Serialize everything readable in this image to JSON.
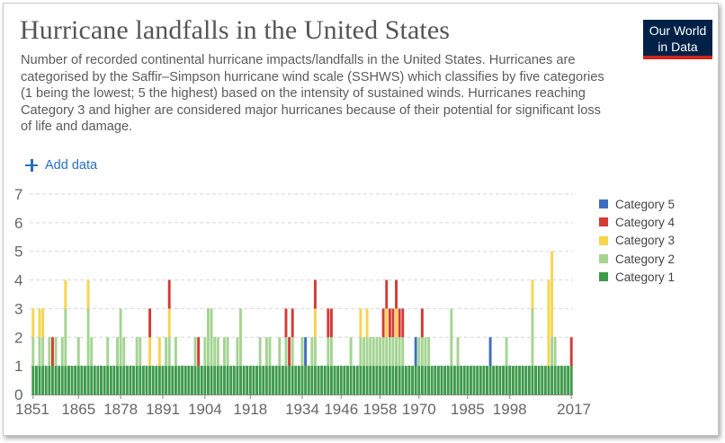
{
  "header": {
    "title": "Hurricane landfalls in the United States",
    "subtitle": "Number of recorded continental hurricane impacts/landfalls in the United States. Hurricanes are categorised by the Saffir–Simpson hurricane wind scale (SSHWS) which classifies by five categories (1 being the lowest; 5 the highest) based on the intensity of sustained winds. Hurricanes reaching Category 3 and higher are considered major hurricanes because of their potential for significant loss of life and damage."
  },
  "logo": {
    "line1": "Our World",
    "line2": "in Data"
  },
  "add_data_label": "Add data",
  "colors": {
    "cat1": "#3d9a4b",
    "cat2": "#a4d492",
    "cat3": "#f7d44d",
    "cat4": "#d43a36",
    "cat5": "#3b6fbf",
    "grid": "#d6d6d6",
    "axis": "#888888"
  },
  "chart_data": {
    "type": "bar",
    "stacked": true,
    "x_start": 1851,
    "x_end": 2017,
    "xticks": [
      "1851",
      "1865",
      "1878",
      "1891",
      "1904",
      "1918",
      "1934",
      "1946",
      "1958",
      "1970",
      "1985",
      "1998",
      "2017"
    ],
    "yticks": [
      "0",
      "1",
      "2",
      "3",
      "4",
      "5",
      "6",
      "7"
    ],
    "ylim": [
      0,
      7
    ],
    "grid": "horizontal dashed",
    "legend_position": "right",
    "series": [
      {
        "name": "Category 5",
        "color": "#3b6fbf",
        "values": [
          0,
          0,
          0,
          0,
          0,
          0,
          0,
          0,
          0,
          0,
          0,
          0,
          0,
          0,
          0,
          0,
          0,
          0,
          0,
          0,
          0,
          0,
          0,
          0,
          0,
          0,
          0,
          0,
          0,
          0,
          0,
          0,
          0,
          0,
          0,
          0,
          0,
          0,
          0,
          0,
          0,
          0,
          0,
          0,
          0,
          0,
          0,
          0,
          0,
          0,
          0,
          0,
          0,
          0,
          0,
          0,
          0,
          0,
          0,
          0,
          0,
          0,
          0,
          0,
          0,
          0,
          0,
          0,
          0,
          0,
          0,
          0,
          0,
          0,
          0,
          0,
          0,
          0,
          0,
          0,
          0,
          0,
          0,
          0,
          1,
          0,
          0,
          0,
          0,
          0,
          0,
          0,
          0,
          0,
          0,
          0,
          0,
          0,
          0,
          0,
          0,
          0,
          0,
          0,
          0,
          0,
          0,
          0,
          0,
          0,
          0,
          0,
          0,
          0,
          0,
          0,
          0,
          0,
          1,
          0,
          0,
          0,
          0,
          0,
          0,
          0,
          0,
          0,
          0,
          0,
          0,
          0,
          0,
          0,
          0,
          0,
          0,
          0,
          0,
          0,
          0,
          1,
          0,
          0,
          0,
          0,
          0,
          0,
          0,
          0,
          0,
          0,
          0,
          0,
          0,
          0,
          0,
          0,
          0,
          0,
          0,
          0,
          0,
          0,
          0,
          0,
          0
        ]
      },
      {
        "name": "Category 4",
        "color": "#d43a36",
        "values": [
          0,
          0,
          0,
          0,
          0,
          0,
          1,
          0,
          0,
          0,
          0,
          0,
          0,
          0,
          0,
          0,
          0,
          0,
          0,
          0,
          0,
          0,
          0,
          0,
          0,
          0,
          0,
          0,
          0,
          0,
          0,
          0,
          0,
          0,
          0,
          0,
          1,
          0,
          0,
          0,
          0,
          0,
          1,
          0,
          0,
          0,
          0,
          0,
          0,
          0,
          0,
          1,
          0,
          0,
          0,
          0,
          0,
          0,
          0,
          0,
          0,
          0,
          0,
          0,
          0,
          0,
          0,
          0,
          0,
          0,
          0,
          0,
          0,
          0,
          0,
          0,
          0,
          0,
          1,
          1,
          1,
          0,
          0,
          0,
          0,
          0,
          0,
          1,
          0,
          0,
          0,
          1,
          1,
          0,
          0,
          0,
          0,
          0,
          0,
          0,
          0,
          0,
          0,
          0,
          0,
          0,
          0,
          0,
          1,
          1,
          1,
          1,
          1,
          1,
          1,
          0,
          0,
          0,
          0,
          0,
          1,
          0,
          0,
          0,
          0,
          0,
          0,
          0,
          0,
          0,
          0,
          0,
          0,
          0,
          0,
          0,
          0,
          0,
          0,
          0,
          0,
          0,
          0,
          0,
          0,
          0,
          0,
          0,
          0,
          0,
          0,
          0,
          0,
          0,
          0,
          0,
          0,
          0,
          0,
          0,
          0,
          0,
          0,
          0,
          0,
          0,
          1
        ]
      },
      {
        "name": "Category 3",
        "color": "#f7d44d",
        "values": [
          1,
          0,
          1,
          1,
          0,
          0,
          0,
          0,
          0,
          0,
          1,
          0,
          0,
          0,
          0,
          0,
          0,
          1,
          0,
          0,
          0,
          0,
          0,
          0,
          0,
          0,
          0,
          0,
          0,
          0,
          0,
          0,
          0,
          0,
          0,
          0,
          1,
          0,
          0,
          1,
          0,
          0,
          1,
          0,
          0,
          0,
          0,
          0,
          0,
          0,
          0,
          0,
          0,
          0,
          0,
          0,
          0,
          0,
          0,
          0,
          0,
          0,
          0,
          0,
          0,
          0,
          0,
          0,
          0,
          0,
          0,
          0,
          0,
          0,
          0,
          0,
          0,
          0,
          0,
          0,
          0,
          0,
          0,
          0,
          0,
          0,
          0,
          1,
          0,
          0,
          0,
          0,
          0,
          0,
          0,
          0,
          0,
          0,
          0,
          0,
          0,
          1,
          0,
          1,
          0,
          0,
          0,
          0,
          0,
          1,
          0,
          0,
          1,
          0,
          0,
          0,
          0,
          0,
          0,
          0,
          0,
          0,
          0,
          0,
          0,
          0,
          0,
          0,
          0,
          0,
          0,
          0,
          0,
          0,
          0,
          0,
          0,
          0,
          0,
          0,
          0,
          0,
          0,
          0,
          0,
          0,
          0,
          0,
          0,
          0,
          0,
          0,
          0,
          0,
          1,
          0,
          0,
          0,
          0,
          3,
          3,
          0,
          0,
          0,
          0,
          0,
          0
        ]
      },
      {
        "name": "Category 2",
        "color": "#a4d492",
        "values": [
          1,
          0,
          1,
          1,
          0,
          1,
          0,
          1,
          0,
          1,
          2,
          0,
          0,
          0,
          1,
          0,
          0,
          2,
          1,
          0,
          0,
          0,
          0,
          1,
          0,
          0,
          1,
          2,
          1,
          0,
          0,
          0,
          1,
          1,
          0,
          0,
          0,
          0,
          0,
          0,
          0,
          1,
          1,
          0,
          1,
          0,
          0,
          0,
          0,
          0,
          1,
          0,
          0,
          1,
          2,
          2,
          1,
          1,
          0,
          1,
          1,
          0,
          0,
          1,
          2,
          0,
          0,
          0,
          0,
          0,
          1,
          0,
          1,
          1,
          0,
          0,
          1,
          0,
          1,
          0,
          1,
          0,
          0,
          1,
          0,
          0,
          1,
          1,
          0,
          0,
          0,
          1,
          1,
          0,
          0,
          0,
          0,
          0,
          1,
          0,
          0,
          1,
          1,
          1,
          1,
          1,
          1,
          1,
          1,
          1,
          1,
          1,
          1,
          1,
          1,
          0,
          0,
          0,
          0,
          1,
          1,
          1,
          1,
          0,
          0,
          0,
          0,
          0,
          0,
          2,
          0,
          1,
          0,
          0,
          0,
          0,
          0,
          0,
          0,
          0,
          0,
          0,
          0,
          0,
          0,
          0,
          1,
          0,
          0,
          0,
          0,
          0,
          0,
          0,
          2,
          0,
          0,
          0,
          0,
          0,
          1,
          1,
          0,
          0,
          0,
          0,
          0
        ]
      },
      {
        "name": "Category 1",
        "color": "#3d9a4b",
        "values": [
          1,
          1,
          1,
          1,
          1,
          1,
          1,
          1,
          1,
          1,
          1,
          1,
          1,
          1,
          1,
          1,
          1,
          1,
          1,
          1,
          1,
          1,
          1,
          1,
          1,
          1,
          1,
          1,
          1,
          1,
          1,
          1,
          1,
          1,
          1,
          1,
          1,
          1,
          1,
          1,
          1,
          1,
          1,
          1,
          1,
          1,
          1,
          1,
          1,
          1,
          1,
          1,
          1,
          1,
          1,
          1,
          1,
          1,
          1,
          1,
          1,
          1,
          1,
          1,
          1,
          1,
          1,
          1,
          1,
          1,
          1,
          1,
          1,
          1,
          1,
          1,
          1,
          1,
          1,
          1,
          1,
          1,
          1,
          1,
          1,
          1,
          1,
          1,
          1,
          1,
          1,
          1,
          1,
          1,
          1,
          1,
          1,
          1,
          1,
          1,
          1,
          1,
          1,
          1,
          1,
          1,
          1,
          1,
          1,
          1,
          1,
          1,
          1,
          1,
          1,
          1,
          1,
          1,
          1,
          1,
          1,
          1,
          1,
          1,
          1,
          1,
          1,
          1,
          1,
          1,
          1,
          1,
          1,
          1,
          1,
          1,
          1,
          1,
          1,
          1,
          1,
          1,
          1,
          1,
          1,
          1,
          1,
          1,
          1,
          1,
          1,
          1,
          1,
          1,
          1,
          1,
          1,
          1,
          1,
          1,
          1,
          1,
          1,
          1,
          1,
          1,
          1
        ]
      }
    ]
  }
}
